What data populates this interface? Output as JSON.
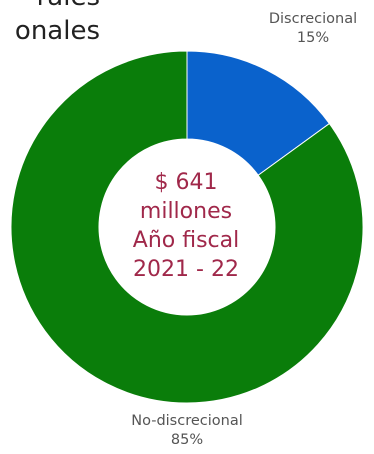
{
  "title_lines": [
    "rales",
    "onales"
  ],
  "center_lines": [
    "$ 641",
    "millones",
    "Año fiscal",
    "2021 - 22"
  ],
  "chart_data": {
    "type": "pie",
    "slices": [
      {
        "label": "Discrecional",
        "value": 15,
        "value_text": "15%",
        "color": "#0a62cc"
      },
      {
        "label": "No-discrecional",
        "value": 85,
        "value_text": "85%",
        "color": "#0a7d0a"
      }
    ],
    "donut": true,
    "center_color": "#a0284a"
  }
}
